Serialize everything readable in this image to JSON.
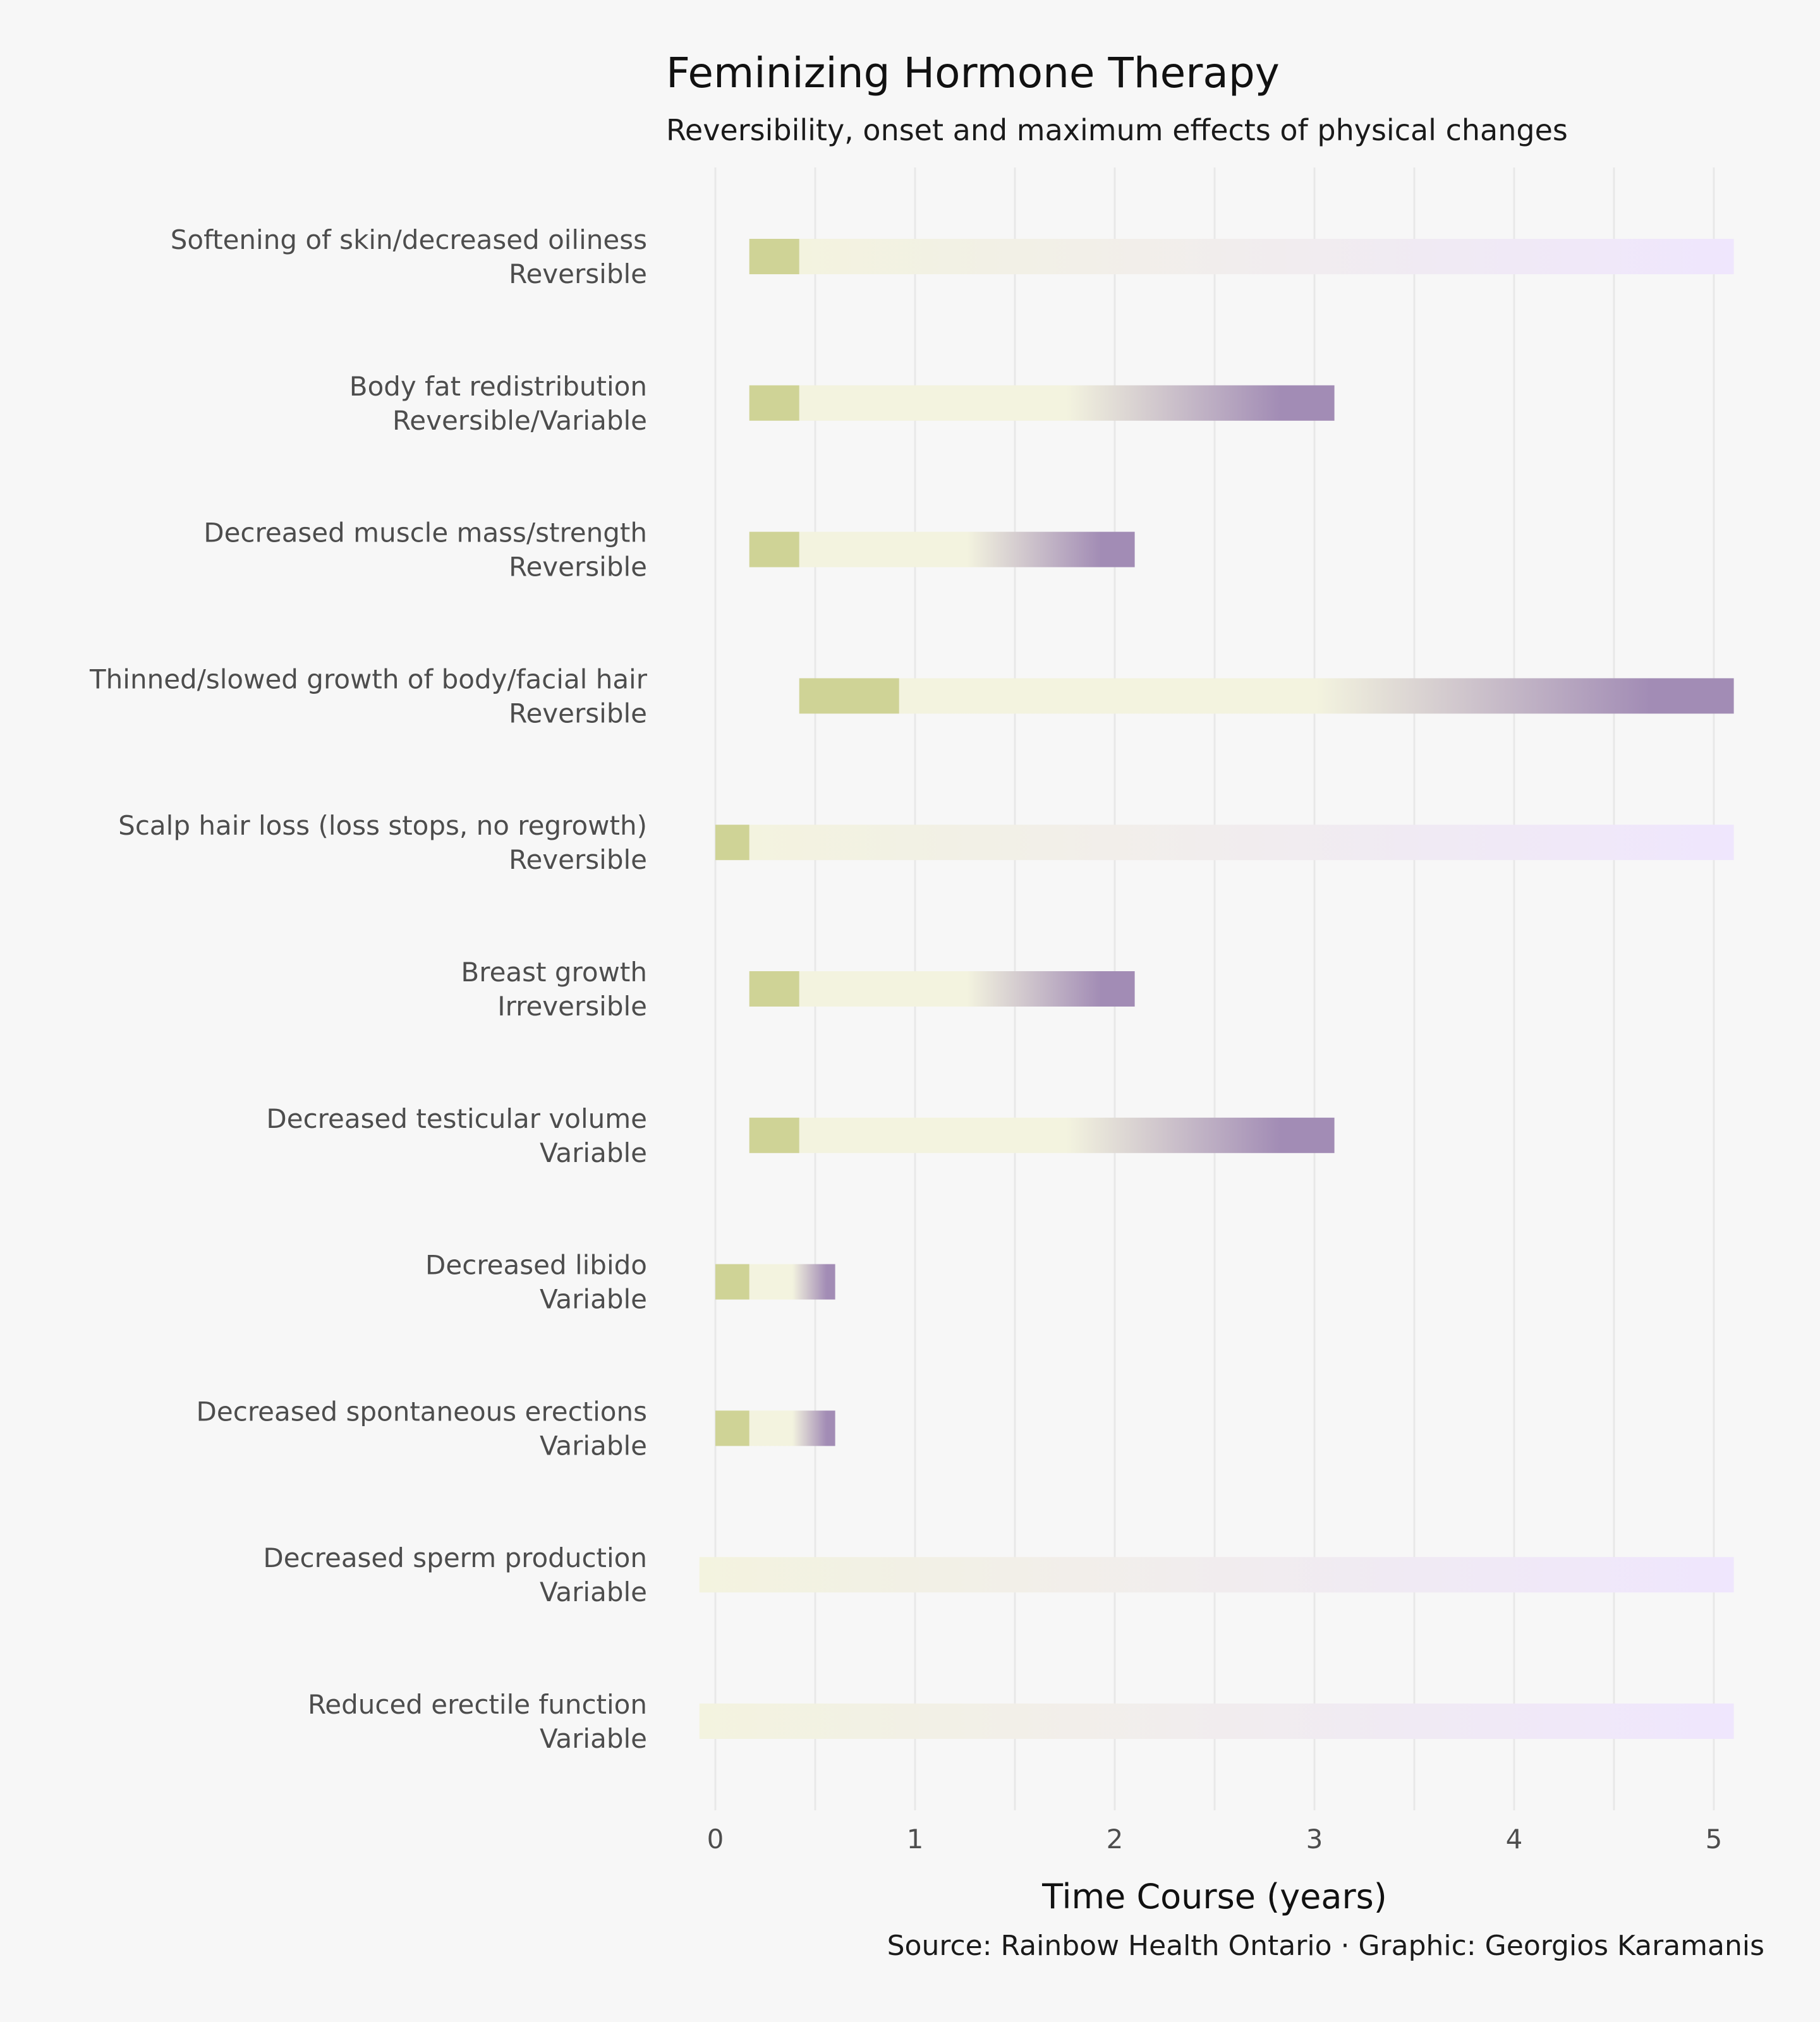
{
  "title": "Feminizing Hormone Therapy",
  "subtitle": "Reversibility, onset and maximum effects of physical changes",
  "caption": "Source: Rainbow Health Ontario · Graphic: Georgios Karamanis",
  "colors": {
    "background": "#f7f7f7",
    "grid": "#e8e8e8",
    "onset": "#cfd396",
    "progress_start": "#f3f3df",
    "maximum": "#a28cb5",
    "ongoing": "#efe6fd"
  },
  "chart_data": {
    "type": "bar",
    "subtype": "horizontal range / timeline",
    "title": "Feminizing Hormone Therapy",
    "subtitle": "Reversibility, onset and maximum effects of physical changes",
    "xlabel": "Time Course (years)",
    "ylabel": "",
    "xlim": [
      -0.1,
      5.1
    ],
    "xticks": [
      0,
      1,
      2,
      3,
      4,
      5
    ],
    "grid": true,
    "legend": "none",
    "categories": [
      "Softening of skin/decreased oiliness",
      "Body fat redistribution",
      "Decreased muscle mass/strength",
      "Thinned/slowed growth of body/facial hair",
      "Scalp hair loss (loss stops, no regrowth)",
      "Breast growth",
      "Decreased testicular volume",
      "Decreased libido",
      "Decreased spontaneous erections",
      "Decreased sperm production",
      "Reduced erectile function"
    ],
    "items": [
      {
        "effect": "Softening of skin/decreased oiliness",
        "reversibility": "Reversible",
        "onset_start": 0.17,
        "onset_end": 0.42,
        "max_effect": 5.1,
        "max_type": "ongoing"
      },
      {
        "effect": "Body fat redistribution",
        "reversibility": "Reversible/Variable",
        "onset_start": 0.17,
        "onset_end": 0.42,
        "max_effect": 3.1,
        "max_type": "defined"
      },
      {
        "effect": "Decreased muscle mass/strength",
        "reversibility": "Reversible",
        "onset_start": 0.17,
        "onset_end": 0.42,
        "max_effect": 2.1,
        "max_type": "defined"
      },
      {
        "effect": "Thinned/slowed growth of body/facial hair",
        "reversibility": "Reversible",
        "onset_start": 0.42,
        "onset_end": 0.92,
        "max_effect": 5.1,
        "max_type": "defined"
      },
      {
        "effect": "Scalp hair loss (loss stops, no regrowth)",
        "reversibility": "Reversible",
        "onset_start": 0.0,
        "onset_end": 0.17,
        "max_effect": 5.1,
        "max_type": "ongoing"
      },
      {
        "effect": "Breast growth",
        "reversibility": "Irreversible",
        "onset_start": 0.17,
        "onset_end": 0.42,
        "max_effect": 2.1,
        "max_type": "defined"
      },
      {
        "effect": "Decreased testicular volume",
        "reversibility": "Variable",
        "onset_start": 0.17,
        "onset_end": 0.42,
        "max_effect": 3.1,
        "max_type": "defined"
      },
      {
        "effect": "Decreased libido",
        "reversibility": "Variable",
        "onset_start": 0.0,
        "onset_end": 0.17,
        "max_effect": 0.6,
        "max_type": "defined"
      },
      {
        "effect": "Decreased spontaneous erections",
        "reversibility": "Variable",
        "onset_start": 0.0,
        "onset_end": 0.17,
        "max_effect": 0.6,
        "max_type": "defined"
      },
      {
        "effect": "Decreased sperm production",
        "reversibility": "Variable",
        "onset_start": null,
        "onset_end": -0.08,
        "max_effect": 5.1,
        "max_type": "ongoing"
      },
      {
        "effect": "Reduced erectile function",
        "reversibility": "Variable",
        "onset_start": null,
        "onset_end": -0.08,
        "max_effect": 5.1,
        "max_type": "ongoing"
      }
    ]
  }
}
